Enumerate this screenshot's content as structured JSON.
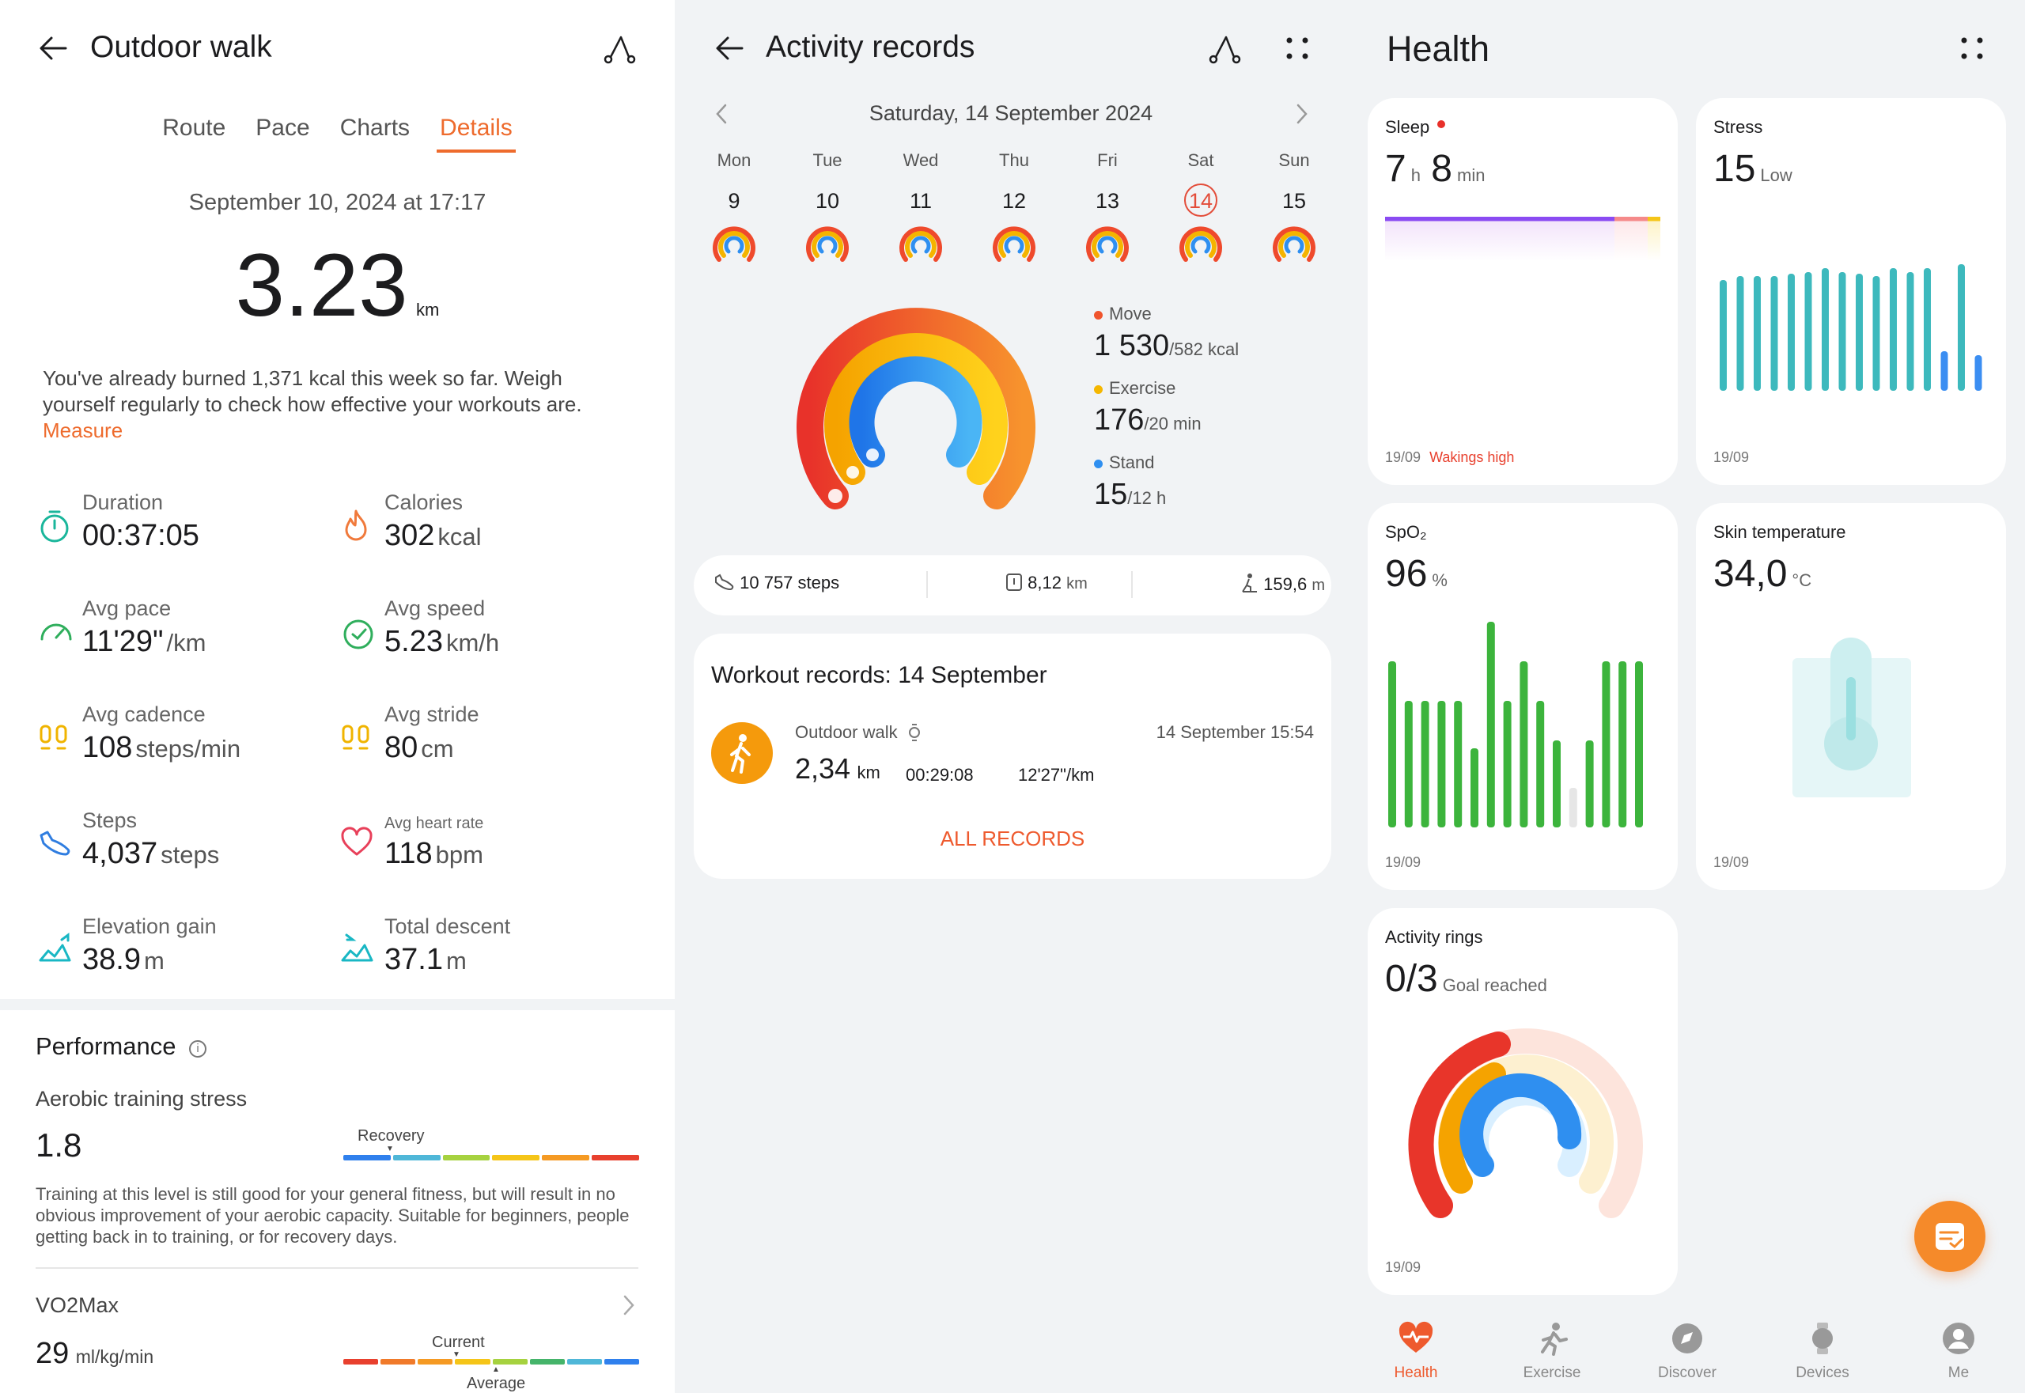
{
  "left": {
    "title": "Outdoor walk",
    "tabs": [
      "Route",
      "Pace",
      "Charts",
      "Details"
    ],
    "datetime": "September 10, 2024 at 17:17",
    "distance": "3.23",
    "distance_unit": "km",
    "info_text": "You've already burned 1,371 kcal this week so far. Weigh yourself regularly to check how effective your workouts are.",
    "measure_link": "Measure",
    "stats": [
      {
        "label": "Duration",
        "value": "00:37:05",
        "unit": ""
      },
      {
        "label": "Calories",
        "value": "302",
        "unit": "kcal"
      },
      {
        "label": "Avg pace",
        "value": "11'29\"",
        "unit": "/km"
      },
      {
        "label": "Avg speed",
        "value": "5.23",
        "unit": "km/h"
      },
      {
        "label": "Avg cadence",
        "value": "108",
        "unit": "steps/min"
      },
      {
        "label": "Avg stride",
        "value": "80",
        "unit": "cm"
      },
      {
        "label": "Steps",
        "value": "4,037",
        "unit": "steps"
      },
      {
        "label": "Avg heart rate",
        "value": "118",
        "unit": "bpm"
      },
      {
        "label": "Elevation gain",
        "value": "38.9",
        "unit": "m"
      },
      {
        "label": "Total descent",
        "value": "37.1",
        "unit": "m"
      }
    ],
    "performance": {
      "title": "Performance",
      "ats_label": "Aerobic training stress",
      "ats_value": "1.8",
      "ats_marker": "Recovery",
      "ats_description": "Training at this level is still good for your general fitness, but will result in no obvious improvement of your aerobic capacity. Suitable for beginners, people getting back in to training, or for recovery days.",
      "vo2_label": "VO2Max",
      "vo2_value": "29",
      "vo2_unit": "ml/kg/min",
      "vo2_current": "Current",
      "vo2_average": "Average"
    },
    "colors": {
      "accent": "#ee6b2d",
      "scale": [
        "#2f80ed",
        "#4fb7d8",
        "#a6d23f",
        "#f5c518",
        "#f59a23",
        "#e8402e"
      ]
    }
  },
  "middle": {
    "title": "Activity records",
    "date": "Saturday, 14 September 2024",
    "days": [
      {
        "name": "Mon",
        "num": "9"
      },
      {
        "name": "Tue",
        "num": "10"
      },
      {
        "name": "Wed",
        "num": "11"
      },
      {
        "name": "Thu",
        "num": "12"
      },
      {
        "name": "Fri",
        "num": "13"
      },
      {
        "name": "Sat",
        "num": "14"
      },
      {
        "name": "Sun",
        "num": "15"
      }
    ],
    "rings": {
      "move_label": "Move",
      "move_value": "1 530",
      "move_goal": "/582 kcal",
      "exercise_label": "Exercise",
      "exercise_value": "176",
      "exercise_goal": "/20 min",
      "stand_label": "Stand",
      "stand_value": "15",
      "stand_goal": "/12 h"
    },
    "summary": {
      "steps": "10 757 steps",
      "distance_value": "8,12",
      "distance_unit": "km",
      "elevation_value": "159,6",
      "elevation_unit": "m"
    },
    "workouts": {
      "title": "Workout records: 14 September",
      "name": "Outdoor walk",
      "time": "14 September 15:54",
      "distance": "2,34",
      "distance_unit": "km",
      "duration": "00:29:08",
      "pace": "12'27\"/km",
      "all_records": "ALL RECORDS"
    },
    "colors": {
      "move": "#f0542d",
      "exercise": "#f5b700",
      "stand": "#2f8ff0"
    }
  },
  "right": {
    "title": "Health",
    "sleep": {
      "title": "Sleep",
      "hours": "7",
      "h_unit": "h",
      "minutes": "8",
      "m_unit": "min",
      "date": "19/09",
      "note": "Wakings high"
    },
    "stress": {
      "title": "Stress",
      "value": "15",
      "level": "Low",
      "date": "19/09"
    },
    "spo2": {
      "title": "SpO₂",
      "value": "96",
      "unit": "%",
      "date": "19/09"
    },
    "skin": {
      "title": "Skin temperature",
      "value": "34,0",
      "unit": "°C",
      "date": "19/09"
    },
    "rings": {
      "title": "Activity rings",
      "value": "0/3",
      "label": "Goal reached",
      "date": "19/09"
    },
    "nav": [
      "Health",
      "Exercise",
      "Discover",
      "Devices",
      "Me"
    ]
  }
}
